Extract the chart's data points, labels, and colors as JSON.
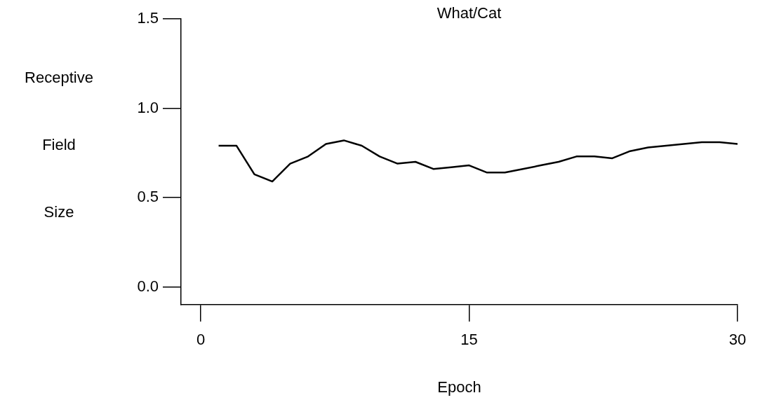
{
  "chart_data": {
    "type": "line",
    "title": "What/Cat",
    "xlabel": "Epoch",
    "ylabel": "Receptive Field Size",
    "x": [
      1,
      2,
      3,
      4,
      5,
      6,
      7,
      8,
      9,
      10,
      11,
      12,
      13,
      14,
      15,
      16,
      17,
      18,
      19,
      20,
      21,
      22,
      23,
      24,
      25,
      26,
      27,
      28,
      29,
      30
    ],
    "series": [
      {
        "color": "#000000",
        "values": [
          0.79,
          0.79,
          0.63,
          0.59,
          0.69,
          0.73,
          0.8,
          0.82,
          0.79,
          0.73,
          0.69,
          0.7,
          0.66,
          0.67,
          0.68,
          0.64,
          0.64,
          0.66,
          0.68,
          0.7,
          0.73,
          0.73,
          0.72,
          0.76,
          0.78,
          0.79,
          0.8,
          0.81,
          0.81,
          0.8
        ]
      }
    ],
    "xlim": [
      -1.1,
      30
    ],
    "xticks": [
      0,
      15,
      30
    ],
    "ylim": [
      -0.1,
      1.5
    ],
    "yticks": [
      {
        "value": 0,
        "label": "0.0"
      },
      {
        "value": 0.5,
        "label": "0.5"
      },
      {
        "value": 1,
        "label": "1.0"
      },
      {
        "value": 1.5,
        "label": "1.5"
      }
    ],
    "grid": false,
    "legend": false,
    "marker": "none",
    "line_style": "solid"
  }
}
